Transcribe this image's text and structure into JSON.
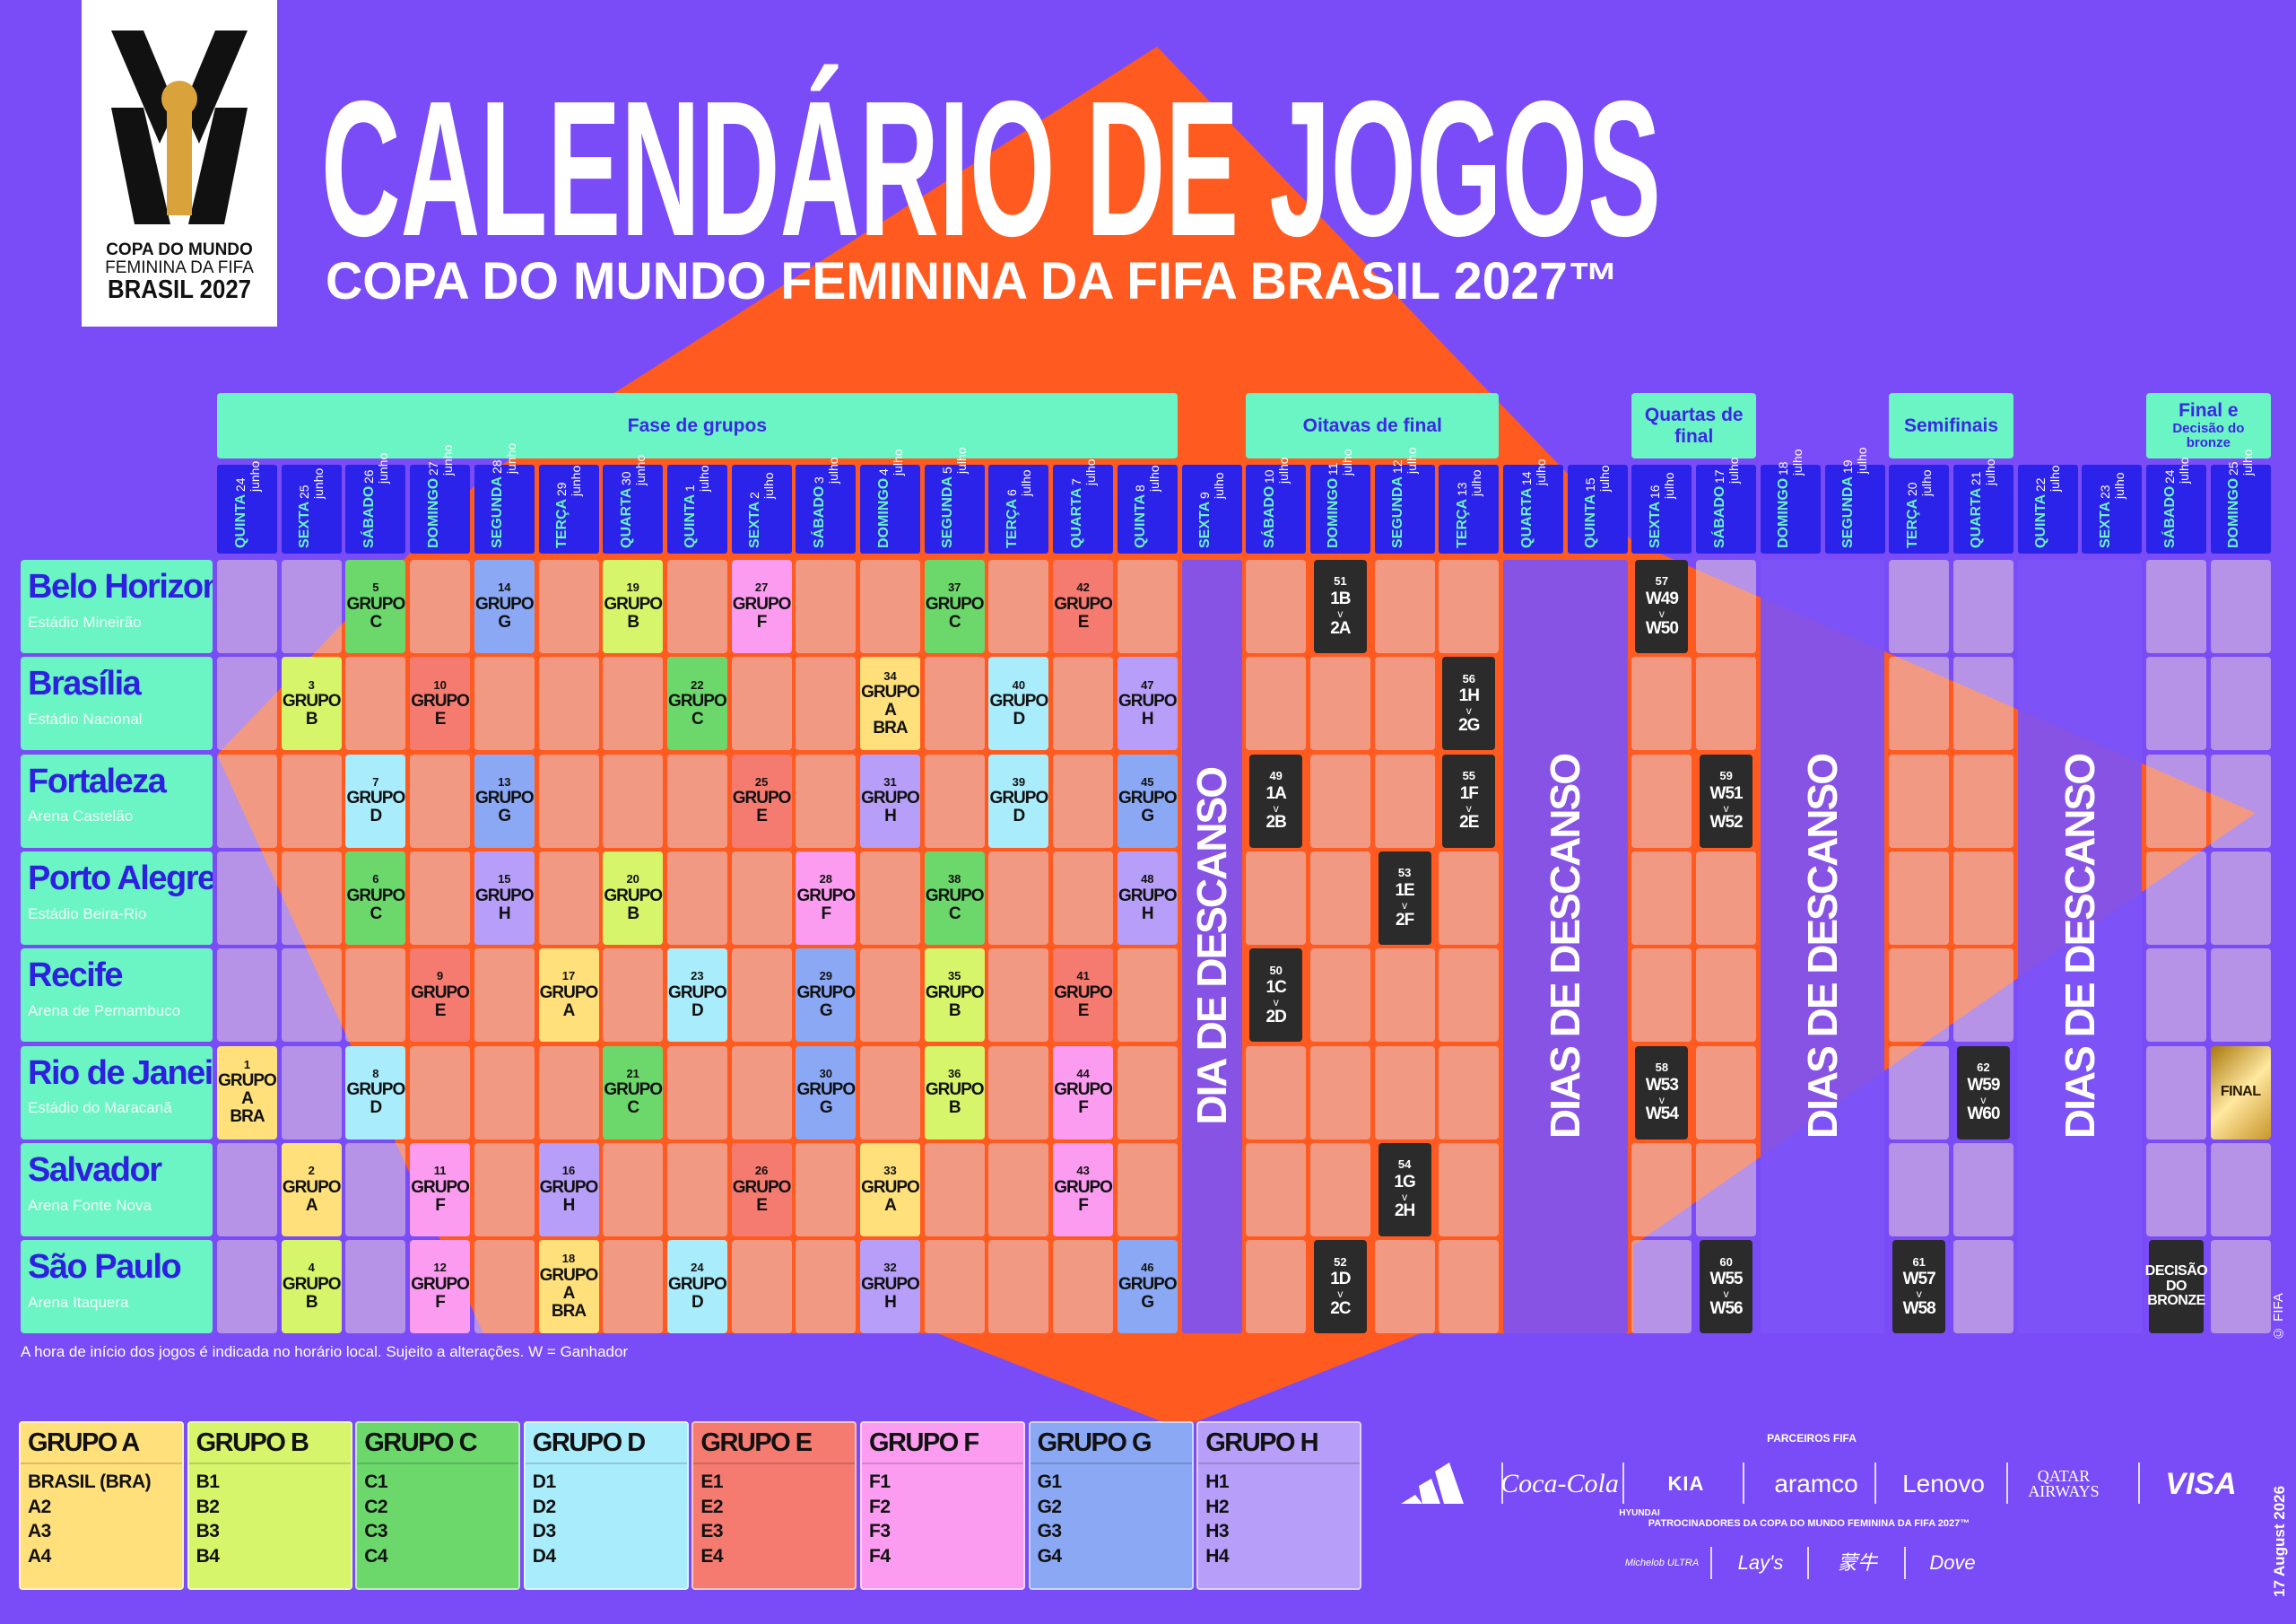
{
  "logo": {
    "lines": [
      "COPA DO MUNDO",
      "FEMININA DA FIFA",
      "BRASIL 2027"
    ]
  },
  "header": {
    "title": "CALENDÁRIO DE JOGOS",
    "subtitle": "COPA DO MUNDO FEMININA DA FIFA BRASIL 2027™"
  },
  "phases": [
    {
      "label": "Fase de grupos"
    },
    {
      "label": "Oitavas de final"
    },
    {
      "label": "Quartas de final"
    },
    {
      "label": "Semifinais"
    },
    {
      "label": "Final e",
      "sublabel": "Decisão do bronze"
    }
  ],
  "days": [
    {
      "weekday": "QUINTA",
      "date": "24 junho"
    },
    {
      "weekday": "SEXTA",
      "date": "25 junho"
    },
    {
      "weekday": "SÁBADO",
      "date": "26 junho"
    },
    {
      "weekday": "DOMINGO",
      "date": "27 junho"
    },
    {
      "weekday": "SEGUNDA",
      "date": "28 junho"
    },
    {
      "weekday": "TERÇA",
      "date": "29 junho"
    },
    {
      "weekday": "QUARTA",
      "date": "30 junho"
    },
    {
      "weekday": "QUINTA",
      "date": "1 julho"
    },
    {
      "weekday": "SEXTA",
      "date": "2 julho"
    },
    {
      "weekday": "SÁBADO",
      "date": "3 julho"
    },
    {
      "weekday": "DOMINGO",
      "date": "4 julho"
    },
    {
      "weekday": "SEGUNDA",
      "date": "5 julho"
    },
    {
      "weekday": "TERÇA",
      "date": "6 julho"
    },
    {
      "weekday": "QUARTA",
      "date": "7 julho"
    },
    {
      "weekday": "QUINTA",
      "date": "8 julho"
    },
    {
      "weekday": "SEXTA",
      "date": "9 julho"
    },
    {
      "weekday": "SÁBADO",
      "date": "10 julho"
    },
    {
      "weekday": "DOMINGO",
      "date": "11 julho"
    },
    {
      "weekday": "SEGUNDA",
      "date": "12 julho"
    },
    {
      "weekday": "TERÇA",
      "date": "13 julho"
    },
    {
      "weekday": "QUARTA",
      "date": "14 julho"
    },
    {
      "weekday": "QUINTA",
      "date": "15 julho"
    },
    {
      "weekday": "SEXTA",
      "date": "16 julho"
    },
    {
      "weekday": "SÁBADO",
      "date": "17 julho"
    },
    {
      "weekday": "DOMINGO",
      "date": "18 julho"
    },
    {
      "weekday": "SEGUNDA",
      "date": "19 julho"
    },
    {
      "weekday": "TERÇA",
      "date": "20 julho"
    },
    {
      "weekday": "QUARTA",
      "date": "21 julho"
    },
    {
      "weekday": "QUINTA",
      "date": "22 julho"
    },
    {
      "weekday": "SEXTA",
      "date": "23 julho"
    },
    {
      "weekday": "SÁBADO",
      "date": "24 julho"
    },
    {
      "weekday": "DOMINGO",
      "date": "25 julho"
    }
  ],
  "rest": {
    "single": "DIA DE DESCANSO",
    "multiple": "DIAS DE DESCANSO"
  },
  "versus": "v",
  "cities": [
    {
      "name": "Belo Horizonte",
      "stadium": "Estádio Mineirão",
      "cells": [
        null,
        null,
        {
          "n": 5,
          "t": [
            "GRUPO",
            "C"
          ]
        },
        null,
        {
          "n": 14,
          "t": [
            "GRUPO",
            "G"
          ]
        },
        null,
        {
          "n": 19,
          "t": [
            "GRUPO",
            "B"
          ]
        },
        null,
        {
          "n": 27,
          "t": [
            "GRUPO",
            "F"
          ]
        },
        null,
        null,
        {
          "n": 37,
          "t": [
            "GRUPO",
            "C"
          ]
        },
        null,
        {
          "n": 42,
          "t": [
            "GRUPO",
            "E"
          ]
        },
        null,
        null,
        null,
        {
          "n": 51,
          "t": [
            "1B",
            "2A"
          ]
        },
        null,
        null,
        null,
        null,
        {
          "n": 57,
          "t": [
            "W49",
            "W50"
          ]
        },
        null,
        null,
        null,
        null,
        null,
        null,
        null,
        null,
        null
      ]
    },
    {
      "name": "Brasília",
      "stadium": "Estádio Nacional",
      "cells": [
        null,
        {
          "n": 3,
          "t": [
            "GRUPO",
            "B"
          ]
        },
        null,
        {
          "n": 10,
          "t": [
            "GRUPO",
            "E"
          ]
        },
        null,
        null,
        null,
        {
          "n": 22,
          "t": [
            "GRUPO",
            "C"
          ]
        },
        null,
        null,
        {
          "n": 34,
          "t": [
            "GRUPO",
            "A",
            "BRA"
          ]
        },
        null,
        {
          "n": 40,
          "t": [
            "GRUPO",
            "D"
          ]
        },
        null,
        {
          "n": 47,
          "t": [
            "GRUPO",
            "H"
          ]
        },
        null,
        null,
        null,
        null,
        {
          "n": 56,
          "t": [
            "1H",
            "2G"
          ]
        },
        null,
        null,
        null,
        null,
        null,
        null,
        null,
        null,
        null,
        null,
        null,
        null
      ]
    },
    {
      "name": "Fortaleza",
      "stadium": "Arena Castelão",
      "cells": [
        null,
        null,
        {
          "n": 7,
          "t": [
            "GRUPO",
            "D"
          ]
        },
        null,
        {
          "n": 13,
          "t": [
            "GRUPO",
            "G"
          ]
        },
        null,
        null,
        null,
        {
          "n": 25,
          "t": [
            "GRUPO",
            "E"
          ]
        },
        null,
        {
          "n": 31,
          "t": [
            "GRUPO",
            "H"
          ]
        },
        null,
        {
          "n": 39,
          "t": [
            "GRUPO",
            "D"
          ]
        },
        null,
        {
          "n": 45,
          "t": [
            "GRUPO",
            "G"
          ]
        },
        null,
        {
          "n": 49,
          "t": [
            "1A",
            "2B"
          ]
        },
        null,
        null,
        {
          "n": 55,
          "t": [
            "1F",
            "2E"
          ]
        },
        null,
        null,
        null,
        {
          "n": 59,
          "t": [
            "W51",
            "W52"
          ]
        },
        null,
        null,
        null,
        null,
        null,
        null,
        null,
        null
      ]
    },
    {
      "name": "Porto Alegre",
      "stadium": "Estádio Beira-Rio",
      "cells": [
        null,
        null,
        {
          "n": 6,
          "t": [
            "GRUPO",
            "C"
          ]
        },
        null,
        {
          "n": 15,
          "t": [
            "GRUPO",
            "H"
          ]
        },
        null,
        {
          "n": 20,
          "t": [
            "GRUPO",
            "B"
          ]
        },
        null,
        null,
        {
          "n": 28,
          "t": [
            "GRUPO",
            "F"
          ]
        },
        null,
        {
          "n": 38,
          "t": [
            "GRUPO",
            "C"
          ]
        },
        null,
        null,
        {
          "n": 48,
          "t": [
            "GRUPO",
            "H"
          ]
        },
        null,
        null,
        null,
        {
          "n": 53,
          "t": [
            "1E",
            "2F"
          ]
        },
        null,
        null,
        null,
        null,
        null,
        null,
        null,
        null,
        null,
        null,
        null,
        null,
        null
      ]
    },
    {
      "name": "Recife",
      "stadium": "Arena de Pernambuco",
      "cells": [
        null,
        null,
        null,
        {
          "n": 9,
          "t": [
            "GRUPO",
            "E"
          ]
        },
        null,
        {
          "n": 17,
          "t": [
            "GRUPO",
            "A"
          ]
        },
        null,
        {
          "n": 23,
          "t": [
            "GRUPO",
            "D"
          ]
        },
        null,
        {
          "n": 29,
          "t": [
            "GRUPO",
            "G"
          ]
        },
        null,
        {
          "n": 35,
          "t": [
            "GRUPO",
            "B"
          ]
        },
        null,
        {
          "n": 41,
          "t": [
            "GRUPO",
            "E"
          ]
        },
        null,
        null,
        {
          "n": 50,
          "t": [
            "1C",
            "2D"
          ]
        },
        null,
        null,
        null,
        null,
        null,
        null,
        null,
        null,
        null,
        null,
        null,
        null,
        null,
        null,
        null
      ]
    },
    {
      "name": "Rio de Janeiro",
      "stadium": "Estádio do Maracanã",
      "cells": [
        {
          "n": 1,
          "t": [
            "GRUPO",
            "A",
            "BRA"
          ]
        },
        null,
        {
          "n": 8,
          "t": [
            "GRUPO",
            "D"
          ]
        },
        null,
        null,
        null,
        {
          "n": 21,
          "t": [
            "GRUPO",
            "C"
          ]
        },
        null,
        null,
        {
          "n": 30,
          "t": [
            "GRUPO",
            "G"
          ]
        },
        null,
        {
          "n": 36,
          "t": [
            "GRUPO",
            "B"
          ]
        },
        null,
        {
          "n": 44,
          "t": [
            "GRUPO",
            "F"
          ]
        },
        null,
        null,
        null,
        null,
        null,
        null,
        null,
        null,
        {
          "n": 58,
          "t": [
            "W53",
            "W54"
          ]
        },
        null,
        null,
        null,
        null,
        {
          "n": 62,
          "t": [
            "W59",
            "W60"
          ]
        },
        null,
        null,
        null,
        {
          "t": [
            "FINAL"
          ]
        }
      ]
    },
    {
      "name": "Salvador",
      "stadium": "Arena Fonte Nova",
      "cells": [
        null,
        {
          "n": 2,
          "t": [
            "GRUPO",
            "A"
          ]
        },
        null,
        {
          "n": 11,
          "t": [
            "GRUPO",
            "F"
          ]
        },
        null,
        {
          "n": 16,
          "t": [
            "GRUPO",
            "H"
          ]
        },
        null,
        null,
        {
          "n": 26,
          "t": [
            "GRUPO",
            "E"
          ]
        },
        null,
        {
          "n": 33,
          "t": [
            "GRUPO",
            "A"
          ]
        },
        null,
        null,
        {
          "n": 43,
          "t": [
            "GRUPO",
            "F"
          ]
        },
        null,
        null,
        null,
        null,
        {
          "n": 54,
          "t": [
            "1G",
            "2H"
          ]
        },
        null,
        null,
        null,
        null,
        null,
        null,
        null,
        null,
        null,
        null,
        null,
        null,
        null
      ]
    },
    {
      "name": "São Paulo",
      "stadium": "Arena Itaquera",
      "cells": [
        null,
        {
          "n": 4,
          "t": [
            "GRUPO",
            "B"
          ]
        },
        null,
        {
          "n": 12,
          "t": [
            "GRUPO",
            "F"
          ]
        },
        null,
        {
          "n": 18,
          "t": [
            "GRUPO",
            "A",
            "BRA"
          ]
        },
        null,
        {
          "n": 24,
          "t": [
            "GRUPO",
            "D"
          ]
        },
        null,
        null,
        {
          "n": 32,
          "t": [
            "GRUPO",
            "H"
          ]
        },
        null,
        null,
        null,
        {
          "n": 46,
          "t": [
            "GRUPO",
            "G"
          ]
        },
        null,
        null,
        {
          "n": 52,
          "t": [
            "1D",
            "2C"
          ]
        },
        null,
        null,
        null,
        null,
        null,
        {
          "n": 60,
          "t": [
            "W55",
            "W56"
          ]
        },
        null,
        null,
        {
          "n": 61,
          "t": [
            "W57",
            "W58"
          ]
        },
        null,
        null,
        null,
        {
          "t": [
            "DECISÃO",
            "DO",
            "BRONZE"
          ]
        },
        null
      ]
    }
  ],
  "footnote": "A hora de início dos jogos é indicada no horário local. Sujeito a alterações. W = Ganhador",
  "groups": [
    {
      "name": "GRUPO A",
      "color": "#ffe07a",
      "teams": [
        "BRASIL (BRA)",
        "A2",
        "A3",
        "A4"
      ]
    },
    {
      "name": "GRUPO B",
      "color": "#d6f56a",
      "teams": [
        "B1",
        "B2",
        "B3",
        "B4"
      ]
    },
    {
      "name": "GRUPO C",
      "color": "#6cd86c",
      "teams": [
        "C1",
        "C2",
        "C3",
        "C4"
      ]
    },
    {
      "name": "GRUPO D",
      "color": "#a9ecfb",
      "teams": [
        "D1",
        "D2",
        "D3",
        "D4"
      ]
    },
    {
      "name": "GRUPO E",
      "color": "#f57a70",
      "teams": [
        "E1",
        "E2",
        "E3",
        "E4"
      ]
    },
    {
      "name": "GRUPO F",
      "color": "#fb9cf0",
      "teams": [
        "F1",
        "F2",
        "F3",
        "F4"
      ]
    },
    {
      "name": "GRUPO G",
      "color": "#8ba8f5",
      "teams": [
        "G1",
        "G2",
        "G3",
        "G4"
      ]
    },
    {
      "name": "GRUPO H",
      "color": "#b79ef8",
      "teams": [
        "H1",
        "H2",
        "H3",
        "H4"
      ]
    }
  ],
  "partners": {
    "title": "PARCEIROS FIFA",
    "brands": [
      "Coca-Cola",
      "HYUNDAI",
      "KIA",
      "aramco",
      "Lenovo",
      "QATAR AIRWAYS",
      "VISA"
    ]
  },
  "sponsors": {
    "title": "PATROCINADORES DA COPA DO MUNDO FEMININA DA FIFA 2027™",
    "brands": [
      "Michelob ULTRA",
      "Lay's",
      "蒙牛",
      "Dove"
    ]
  },
  "side": {
    "copyright": "© FIFA",
    "date": "17 August 2026"
  }
}
